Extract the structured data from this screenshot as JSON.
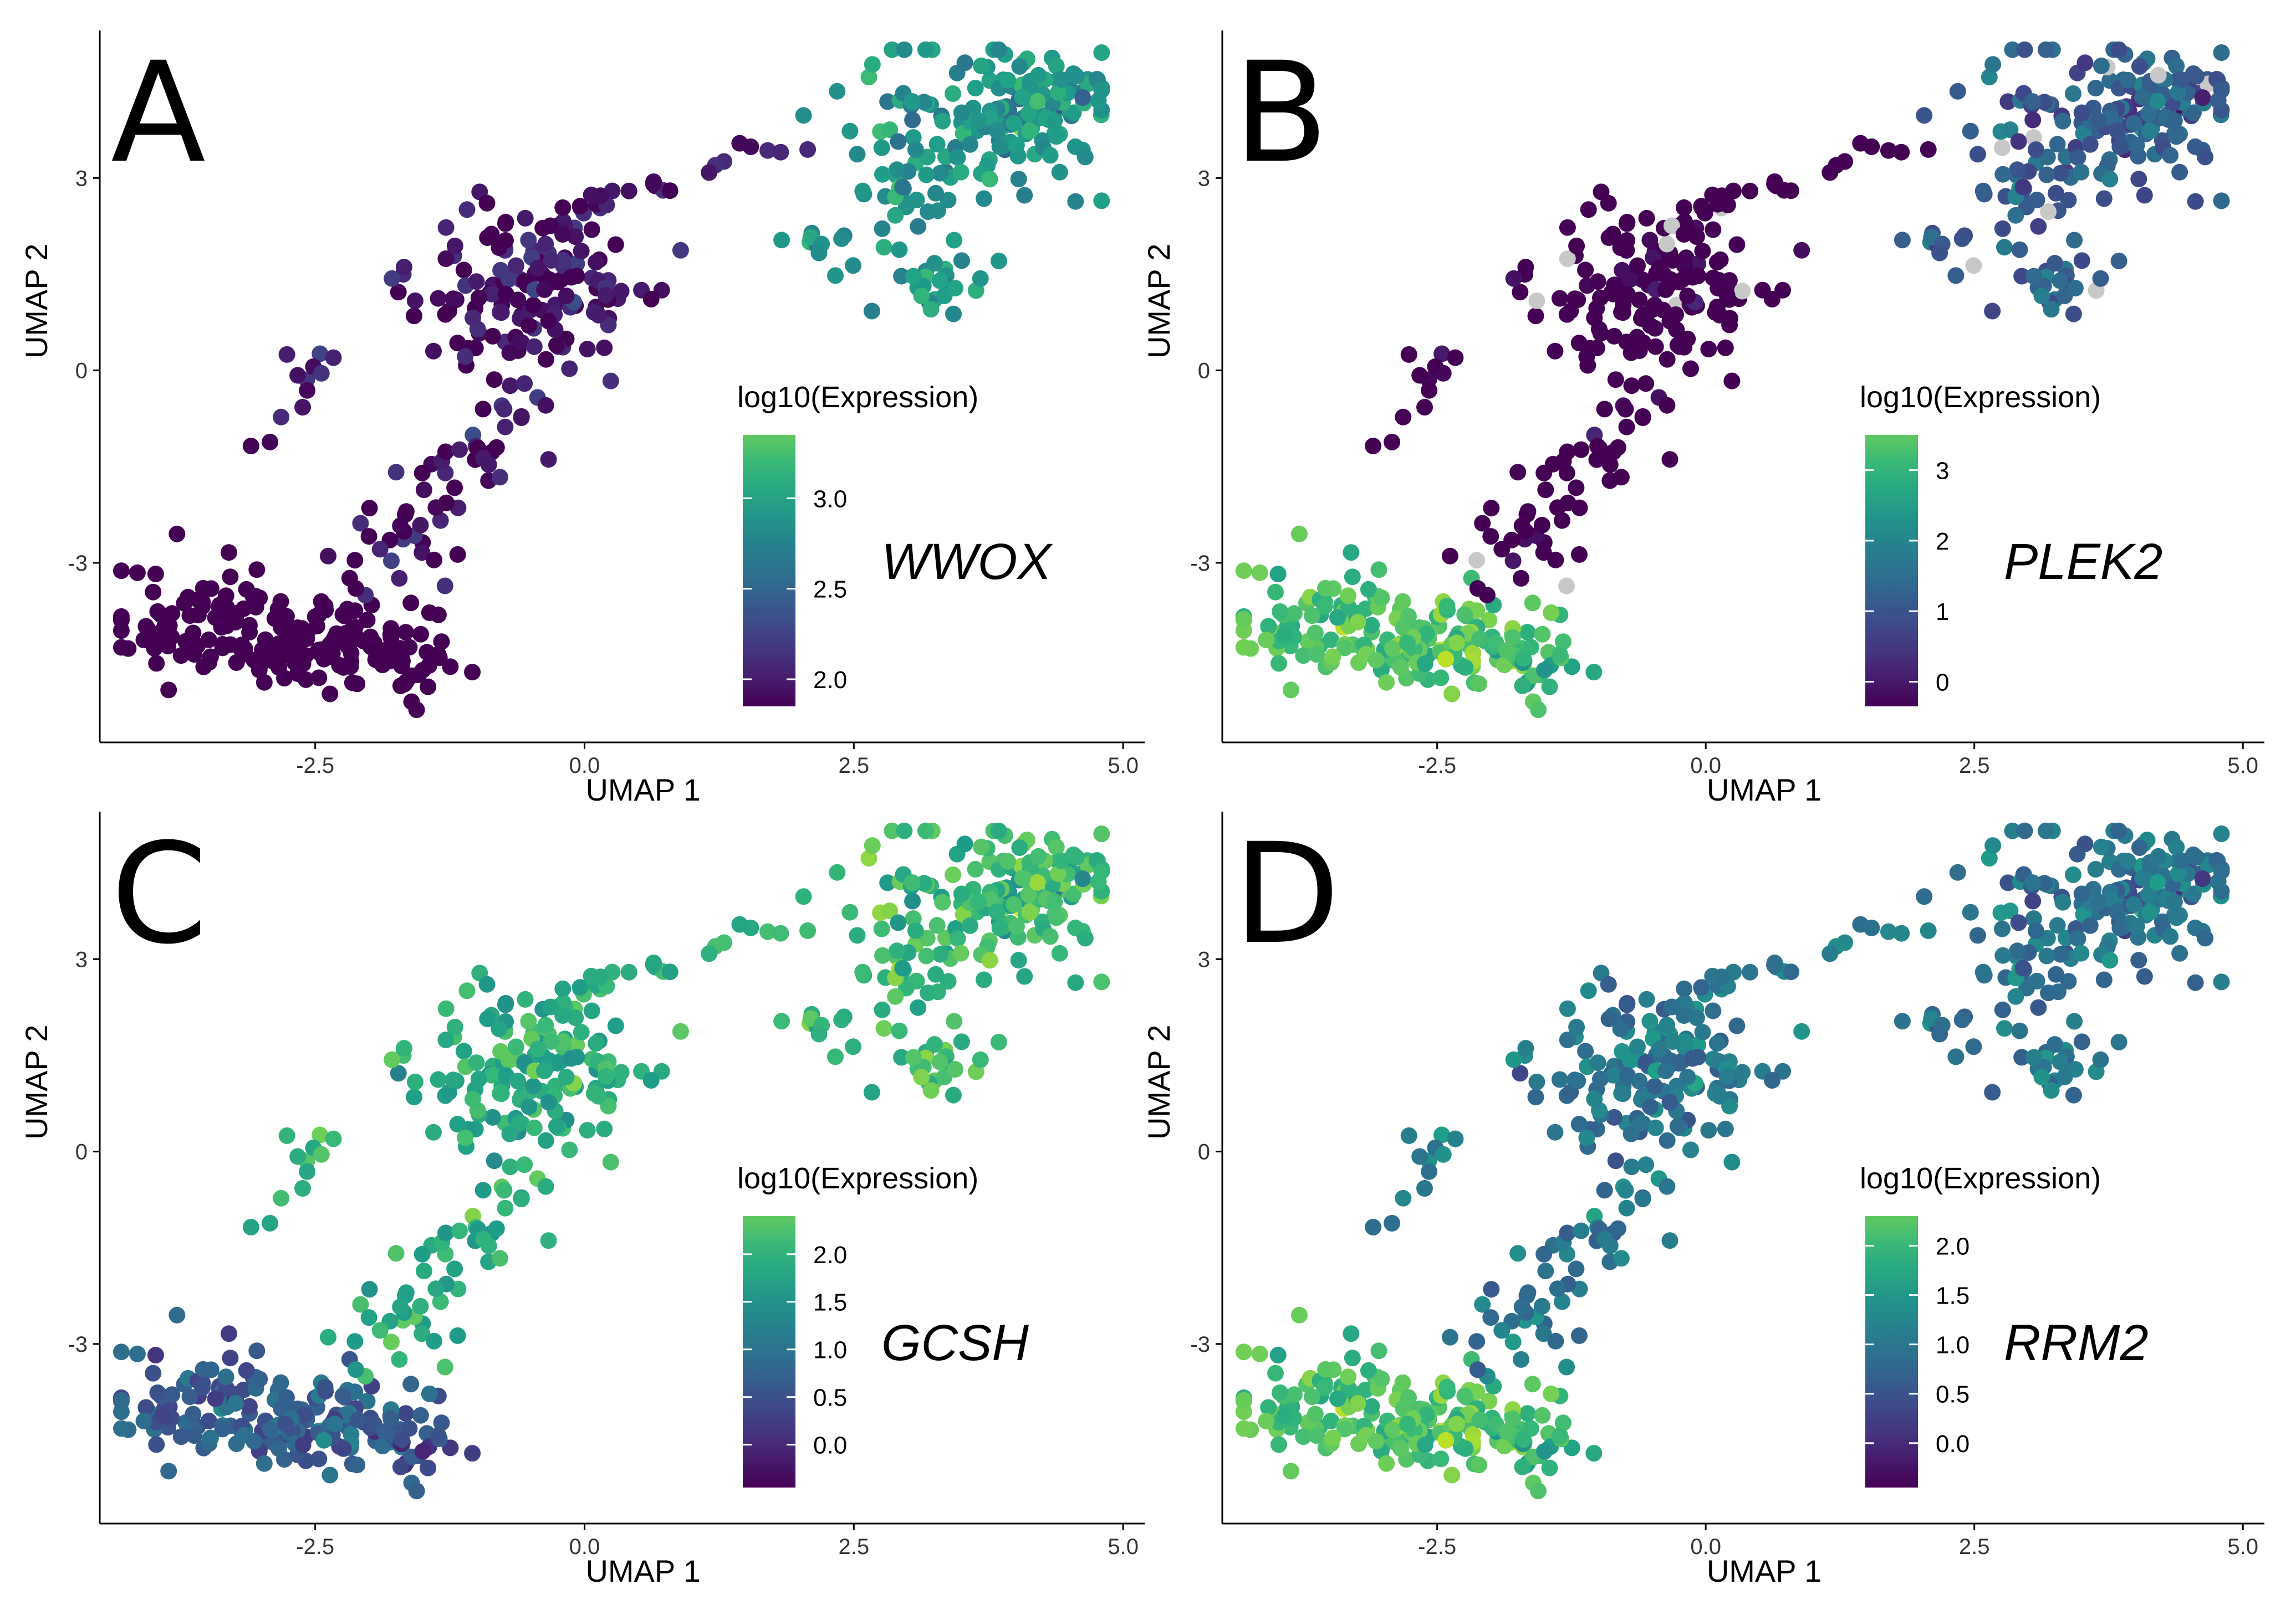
{
  "chart_data": [
    {
      "type": "scatter",
      "panel_label": "A",
      "gene": "WWOX",
      "xlabel": "UMAP 1",
      "ylabel": "UMAP 2",
      "xlim": [
        -4.5,
        5.2
      ],
      "ylim": [
        -5.8,
        5.3
      ],
      "x_ticks": [
        "-2.5",
        "0.0",
        "2.5",
        "5.0"
      ],
      "y_ticks": [
        "3",
        "0",
        "-3"
      ],
      "legend": {
        "title": "log10(Expression)",
        "position": "right-center",
        "range": [
          1.85,
          3.35
        ],
        "ticks": [
          "3.0",
          "2.5",
          "2.0"
        ],
        "tick_values": [
          3.0,
          2.5,
          2.0
        ]
      },
      "colormap": "viridis",
      "color_trend": {
        "right": 0.62,
        "top": 0.06,
        "bottom_left": -0.24
      },
      "point_color_note": "mostly mid teal; darker purple-blue in lower-left cluster"
    },
    {
      "type": "scatter",
      "panel_label": "B",
      "gene": "PLEK2",
      "xlabel": "UMAP 1",
      "ylabel": "UMAP 2",
      "xlim": [
        -4.5,
        5.2
      ],
      "ylim": [
        -5.8,
        5.3
      ],
      "x_ticks": [
        "-2.5",
        "0.0",
        "2.5",
        "5.0"
      ],
      "y_ticks": [
        "3",
        "0",
        "-3"
      ],
      "legend": {
        "title": "log10(Expression)",
        "position": "right-center",
        "range": [
          -0.35,
          3.5
        ],
        "ticks": [
          "3",
          "2",
          "1",
          "0"
        ],
        "tick_values": [
          3,
          2,
          1,
          0
        ]
      },
      "colormap": "viridis",
      "color_trend": {
        "right": 0.35,
        "top": -0.1,
        "bottom_left": 0.85
      },
      "point_color_note": "dark purple in upper clusters; bright green in lower-left cluster; some grey (no expression)"
    },
    {
      "type": "scatter",
      "panel_label": "C",
      "gene": "GCSH",
      "xlabel": "UMAP 1",
      "ylabel": "UMAP 2",
      "xlim": [
        -4.5,
        5.2
      ],
      "ylim": [
        -5.8,
        5.3
      ],
      "x_ticks": [
        "-2.5",
        "0.0",
        "2.5",
        "5.0"
      ],
      "y_ticks": [
        "3",
        "0",
        "-3"
      ],
      "legend": {
        "title": "log10(Expression)",
        "position": "right-center",
        "range": [
          -0.45,
          2.4
        ],
        "ticks": [
          "2.0",
          "1.5",
          "1.0",
          "0.5",
          "0.0"
        ],
        "tick_values": [
          2.0,
          1.5,
          1.0,
          0.5,
          0.0
        ]
      },
      "colormap": "viridis",
      "color_trend": {
        "right": 0.8,
        "top": 0.75,
        "bottom_left": 0.35
      },
      "point_color_note": "bright green throughout; teal-blue in lower-left cluster"
    },
    {
      "type": "scatter",
      "panel_label": "D",
      "gene": "RRM2",
      "xlabel": "UMAP 1",
      "ylabel": "UMAP 2",
      "xlim": [
        -4.5,
        5.2
      ],
      "ylim": [
        -5.8,
        5.3
      ],
      "x_ticks": [
        "-2.5",
        "0.0",
        "2.5",
        "5.0"
      ],
      "y_ticks": [
        "3",
        "0",
        "-3"
      ],
      "legend": {
        "title": "log10(Expression)",
        "position": "right-center",
        "range": [
          -0.45,
          2.3
        ],
        "ticks": [
          "2.0",
          "1.5",
          "1.0",
          "0.5",
          "0.0"
        ],
        "tick_values": [
          2.0,
          1.5,
          1.0,
          0.5,
          0.0
        ]
      },
      "colormap": "viridis",
      "color_trend": {
        "right": 0.45,
        "top": 0.48,
        "bottom_left": 0.85
      },
      "point_color_note": "teal in upper clusters; bright green in lower-left cluster"
    }
  ]
}
